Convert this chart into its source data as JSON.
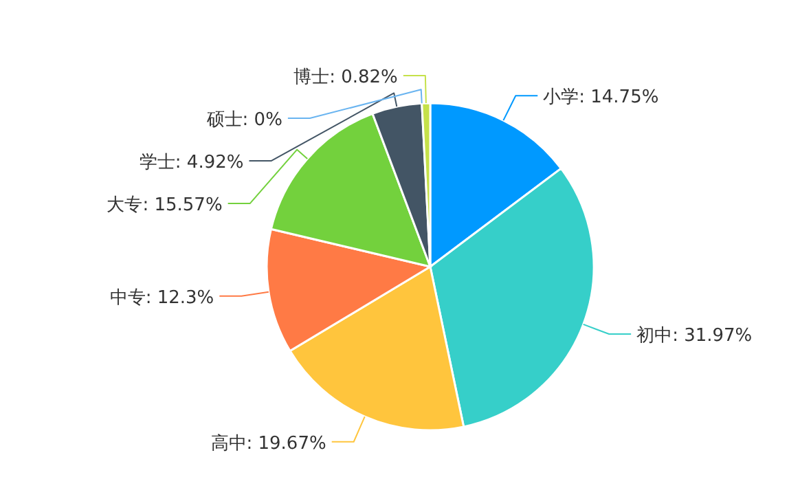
{
  "chart_data": {
    "type": "pie",
    "categories": [
      "小学",
      "初中",
      "高中",
      "中专",
      "大专",
      "学士",
      "硕士",
      "博士"
    ],
    "values": [
      14.75,
      31.97,
      19.67,
      12.3,
      15.57,
      4.92,
      0,
      0.82
    ],
    "value_labels": [
      ": 14.75%",
      ": 31.97%",
      ": 19.67%",
      ": 12.3%",
      ": 15.57%",
      ": 4.92%",
      ": 0%",
      ": 0.82%"
    ],
    "colors": [
      "#0099ff",
      "#36cfc9",
      "#ffc53d",
      "#ff7a45",
      "#73d13d",
      "#435565",
      "#69b4f0",
      "#c5e14a"
    ],
    "legend": false
  }
}
